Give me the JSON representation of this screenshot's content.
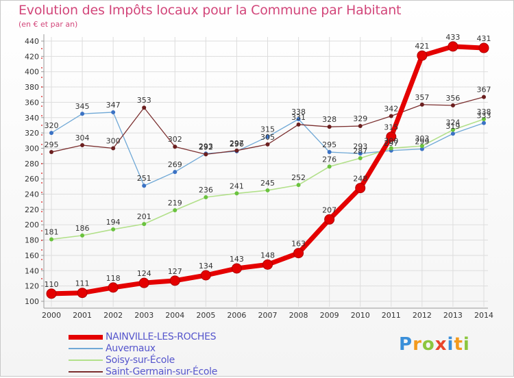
{
  "title": "Evolution des Impôts locaux pour la Commune par Habitant",
  "subtitle": "(en € et par an)",
  "logo": "Proxiti",
  "colors": {
    "title": "#d2467a",
    "axis_text": "#333333",
    "grid": "#dddddd",
    "legend_text": "#5555cc"
  },
  "chart_data": {
    "type": "line",
    "title": "Evolution des Impôts locaux pour la Commune par Habitant",
    "subtitle": "(en € et par an)",
    "x": [
      "2000",
      "2001",
      "2002",
      "2003",
      "2004",
      "2005",
      "2006",
      "2007",
      "2008",
      "2009",
      "2010",
      "2011",
      "2012",
      "2013",
      "2014"
    ],
    "ylim": [
      100,
      440
    ],
    "yticks": [
      100,
      120,
      140,
      160,
      180,
      200,
      220,
      240,
      260,
      280,
      300,
      320,
      340,
      360,
      380,
      400,
      420,
      440
    ],
    "grid": true,
    "legend_position": "bottom-left",
    "series": [
      {
        "name": "NAINVILLE-LES-ROCHES",
        "color": "#e40000",
        "marker_color": "#e40000",
        "width": 7,
        "marker": 7,
        "values": [
          110,
          111,
          118,
          124,
          127,
          134,
          143,
          148,
          163,
          207,
          248,
          315,
          421,
          433,
          431
        ]
      },
      {
        "name": "Auvernaux",
        "color": "#6fa8d6",
        "marker_color": "#3b72c4",
        "width": 1.3,
        "marker": 3,
        "values": [
          320,
          345,
          347,
          251,
          269,
          293,
          296,
          315,
          338,
          295,
          293,
          297,
          299,
          319,
          333
        ]
      },
      {
        "name": "Soisy-sur-École",
        "color": "#b2e08a",
        "marker_color": "#6ac23e",
        "width": 1.6,
        "marker": 3,
        "values": [
          181,
          186,
          194,
          201,
          219,
          236,
          241,
          245,
          252,
          276,
          287,
          300,
          303,
          324,
          338
        ]
      },
      {
        "name": "Saint-Germain-sur-École",
        "color": "#7a2e2e",
        "marker_color": "#6b1f1f",
        "width": 1.3,
        "marker": 3,
        "values": [
          295,
          304,
          300,
          353,
          302,
          292,
          297,
          305,
          331,
          328,
          329,
          342,
          357,
          356,
          367
        ]
      }
    ]
  }
}
